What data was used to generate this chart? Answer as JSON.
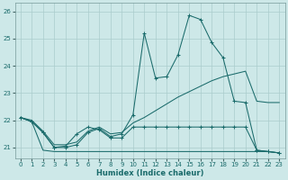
{
  "background_color": "#cde8e8",
  "grid_color": "#aacccc",
  "line_color": "#1a6b6b",
  "x_label": "Humidex (Indice chaleur)",
  "ylim": [
    20.6,
    26.3
  ],
  "xlim": [
    -0.5,
    23.5
  ],
  "yticks": [
    21,
    22,
    23,
    24,
    25,
    26
  ],
  "xticks": [
    0,
    1,
    2,
    3,
    4,
    5,
    6,
    7,
    8,
    9,
    10,
    11,
    12,
    13,
    14,
    15,
    16,
    17,
    18,
    19,
    20,
    21,
    22,
    23
  ],
  "line1_y": [
    22.1,
    21.95,
    21.55,
    21.0,
    21.0,
    21.1,
    21.55,
    21.7,
    21.4,
    21.5,
    22.2,
    25.2,
    23.55,
    23.6,
    24.4,
    25.85,
    25.7,
    24.85,
    24.3,
    22.7,
    22.65,
    20.9,
    20.85,
    20.8
  ],
  "line2_y": [
    22.1,
    22.0,
    21.6,
    21.1,
    21.1,
    21.2,
    21.6,
    21.75,
    21.5,
    21.55,
    21.9,
    22.1,
    22.35,
    22.6,
    22.85,
    23.05,
    23.25,
    23.45,
    23.6,
    23.7,
    23.8,
    22.7,
    22.65,
    22.65
  ],
  "line3_y": [
    22.1,
    21.95,
    21.55,
    21.0,
    21.05,
    21.5,
    21.75,
    21.65,
    21.35,
    21.35,
    21.75,
    21.75,
    21.75,
    21.75,
    21.75,
    21.75,
    21.75,
    21.75,
    21.75,
    21.75,
    21.75,
    20.9,
    20.85,
    20.8
  ],
  "line4_y": [
    22.1,
    21.95,
    20.9,
    20.85,
    20.85,
    20.85,
    20.85,
    20.85,
    20.85,
    20.85,
    20.85,
    20.85,
    20.85,
    20.85,
    20.85,
    20.85,
    20.85,
    20.85,
    20.85,
    20.85,
    20.85,
    20.85,
    20.85,
    20.8
  ]
}
